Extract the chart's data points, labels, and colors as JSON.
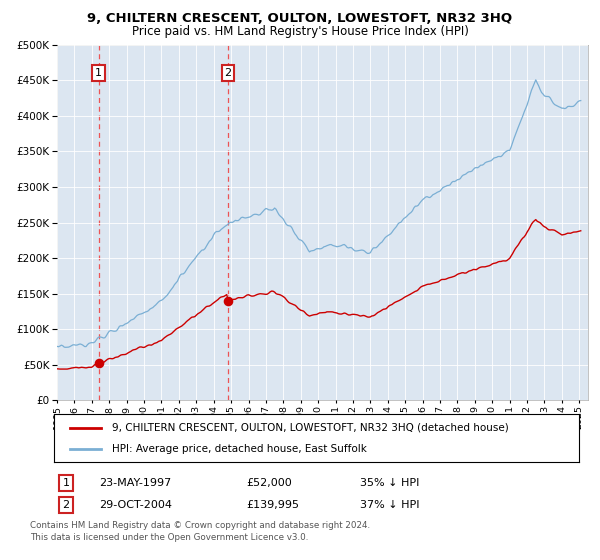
{
  "title": "9, CHILTERN CRESCENT, OULTON, LOWESTOFT, NR32 3HQ",
  "subtitle": "Price paid vs. HM Land Registry's House Price Index (HPI)",
  "legend_line1": "9, CHILTERN CRESCENT, OULTON, LOWESTOFT, NR32 3HQ (detached house)",
  "legend_line2": "HPI: Average price, detached house, East Suffolk",
  "footnote_line1": "Contains HM Land Registry data © Crown copyright and database right 2024.",
  "footnote_line2": "This data is licensed under the Open Government Licence v3.0.",
  "sale1_label": "1",
  "sale1_date": "23-MAY-1997",
  "sale1_price": "£52,000",
  "sale1_hpi": "35% ↓ HPI",
  "sale1_year": 1997.39,
  "sale1_value": 52000,
  "sale2_label": "2",
  "sale2_date": "29-OCT-2004",
  "sale2_price": "£139,995",
  "sale2_hpi": "37% ↓ HPI",
  "sale2_year": 2004.83,
  "sale2_value": 139995,
  "plot_bg_color": "#dce6f1",
  "red_line_color": "#cc0000",
  "blue_line_color": "#7bafd4",
  "vline_color": "#ee4444",
  "ymin": 0,
  "ymax": 500000,
  "xmin": 1995,
  "xmax": 2025.5
}
